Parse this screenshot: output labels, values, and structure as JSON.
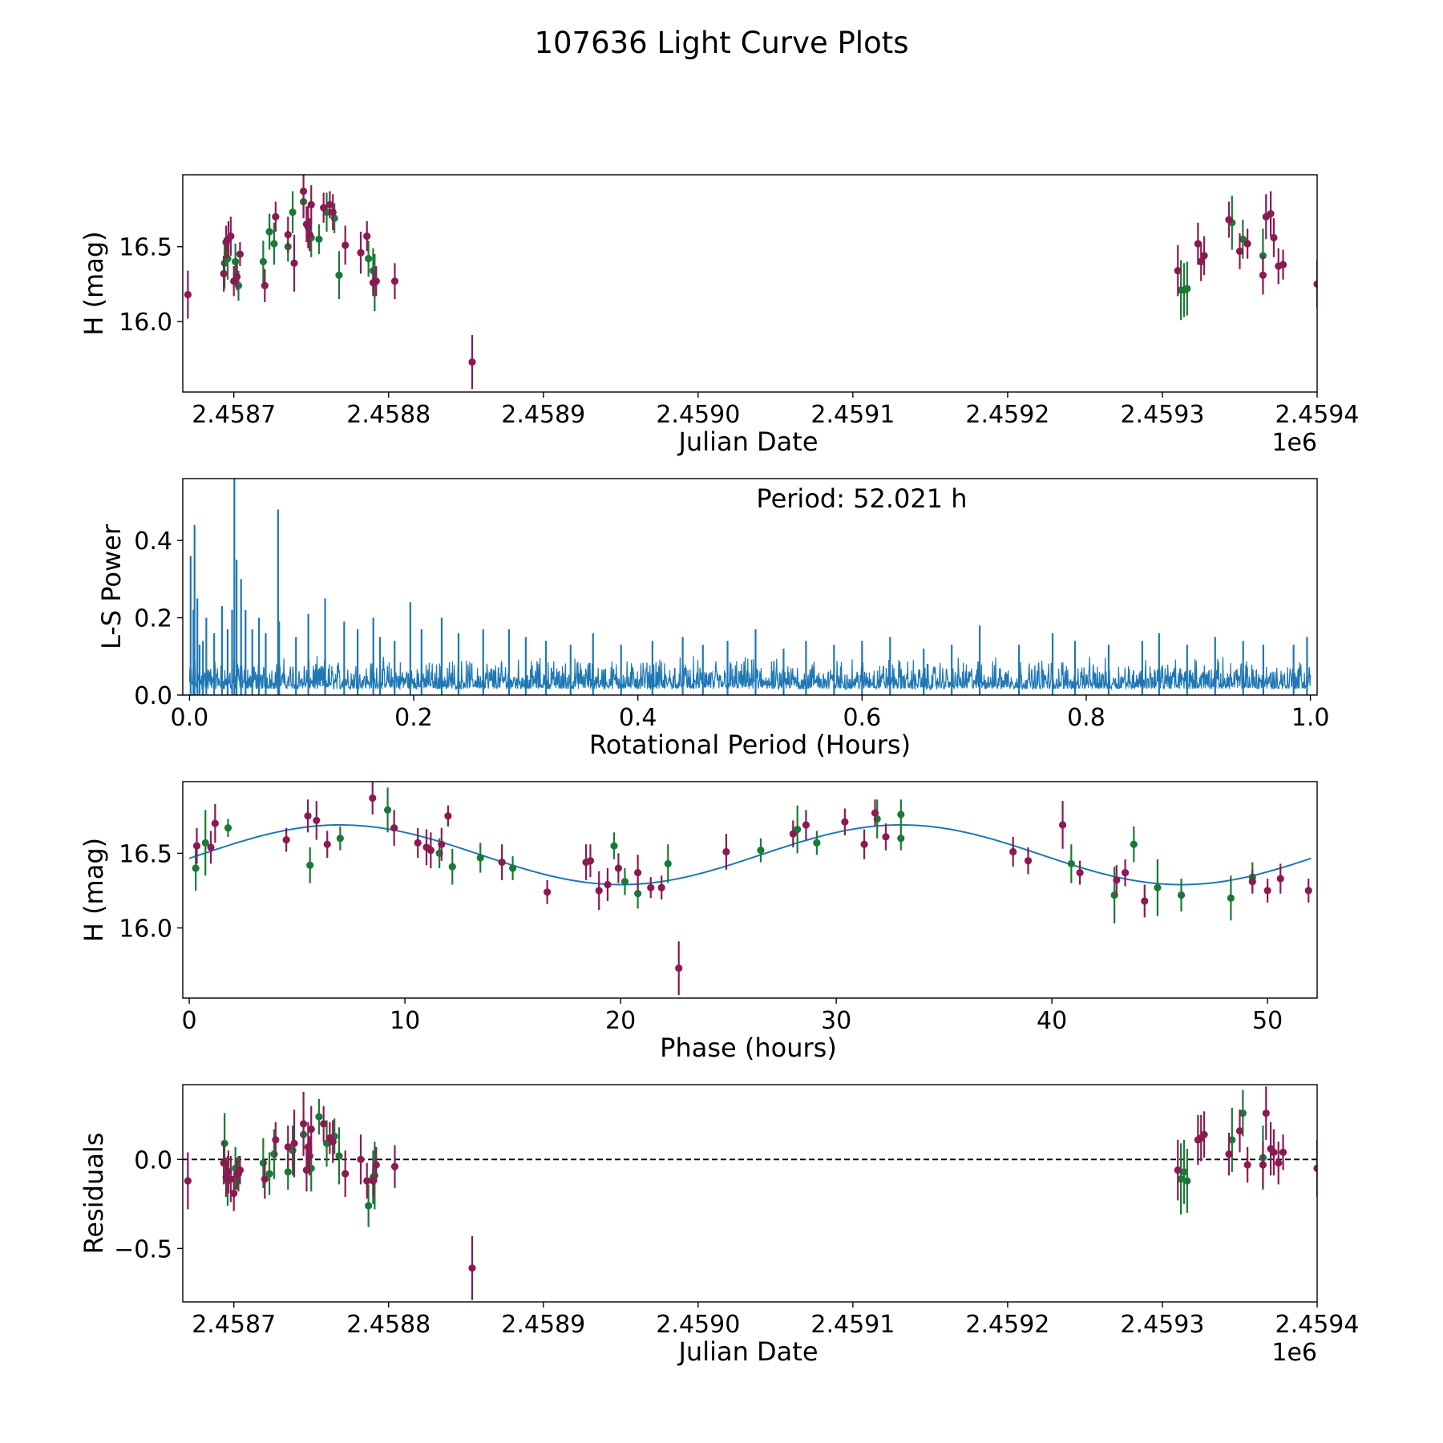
{
  "figure": {
    "title": "107636 Light Curve Plots",
    "colors": {
      "series_a": "#8B1A52",
      "series_b": "#1A7A35",
      "curve": "#1F77B4",
      "axis": "#000000"
    }
  },
  "chart_data": [
    {
      "id": "lightcurve",
      "type": "scatter",
      "xlabel": "Julian Date",
      "ylabel": "H (mag)",
      "offset_label": "1e6",
      "xlim": [
        2.458667,
        2.4594
      ],
      "ylim": [
        15.53,
        16.98
      ],
      "xticks": [
        2.4587,
        2.4588,
        2.4589,
        2.459,
        2.4591,
        2.4592,
        2.4593,
        2.4594
      ],
      "xtick_labels": [
        "2.4587",
        "2.4588",
        "2.4589",
        "2.4590",
        "2.4591",
        "2.4592",
        "2.4593",
        "2.4594"
      ],
      "yticks": [
        16.0,
        16.5
      ],
      "ytick_labels": [
        "16.0",
        "16.5"
      ],
      "series": [
        {
          "name": "series-a",
          "x": [
            2.4586703,
            2.4586935,
            2.458695,
            2.4586965,
            2.458698,
            2.4587,
            2.458702,
            2.458704,
            2.45872,
            2.458727,
            2.458735,
            2.458739,
            2.458745,
            2.458747,
            2.458748,
            2.458749,
            2.45875,
            2.458758,
            2.458762,
            2.458764,
            2.458772,
            2.458782,
            2.458786,
            2.45879,
            2.458792,
            2.458804,
            2.458854,
            2.45931,
            2.459323,
            2.459325,
            2.459327,
            2.459343,
            2.45935,
            2.459355,
            2.459365,
            2.459367,
            2.45937,
            2.459372,
            2.459375,
            2.459378,
            2.4594
          ],
          "y": [
            16.18,
            16.32,
            16.53,
            16.55,
            16.57,
            16.27,
            16.3,
            16.45,
            16.24,
            16.7,
            16.58,
            16.39,
            16.87,
            16.65,
            16.63,
            16.58,
            16.78,
            16.76,
            16.78,
            16.73,
            16.51,
            16.46,
            16.57,
            16.26,
            16.27,
            16.27,
            15.73,
            16.34,
            16.52,
            16.4,
            16.44,
            16.68,
            16.47,
            16.52,
            16.31,
            16.7,
            16.72,
            16.56,
            16.37,
            16.38,
            16.25
          ],
          "err": [
            0.16,
            0.12,
            0.11,
            0.12,
            0.13,
            0.1,
            0.09,
            0.08,
            0.11,
            0.1,
            0.12,
            0.19,
            0.18,
            0.12,
            0.14,
            0.11,
            0.13,
            0.1,
            0.09,
            0.12,
            0.13,
            0.14,
            0.1,
            0.09,
            0.1,
            0.12,
            0.18,
            0.17,
            0.14,
            0.13,
            0.13,
            0.12,
            0.12,
            0.1,
            0.13,
            0.15,
            0.15,
            0.13,
            0.12,
            0.1,
            0.16
          ]
        },
        {
          "name": "series-b",
          "x": [
            2.458694,
            2.458696,
            2.458701,
            2.458703,
            2.458719,
            2.458723,
            2.458726,
            2.458735,
            2.458738,
            2.458745,
            2.45875,
            2.458755,
            2.45876,
            2.458765,
            2.458768,
            2.458787,
            2.45879,
            2.458791,
            2.459312,
            2.459314,
            2.459316,
            2.459345,
            2.459352,
            2.459365
          ],
          "y": [
            16.39,
            16.42,
            16.4,
            16.24,
            16.4,
            16.6,
            16.52,
            16.5,
            16.73,
            16.8,
            16.56,
            16.55,
            16.73,
            16.69,
            16.31,
            16.42,
            16.34,
            16.26,
            16.21,
            16.21,
            16.22,
            16.66,
            16.55,
            16.44
          ],
          "err": [
            0.17,
            0.14,
            0.12,
            0.1,
            0.14,
            0.12,
            0.14,
            0.1,
            0.14,
            0.09,
            0.13,
            0.1,
            0.13,
            0.1,
            0.16,
            0.12,
            0.15,
            0.19,
            0.2,
            0.18,
            0.18,
            0.18,
            0.13,
            0.18
          ]
        }
      ]
    },
    {
      "id": "periodogram",
      "type": "line",
      "xlabel": "Rotational Period (Hours)",
      "ylabel": "L-S Power",
      "annotation": "Period: 52.021 h",
      "xlim": [
        -0.006,
        1.006
      ],
      "ylim": [
        0.0,
        0.56
      ],
      "xticks": [
        0.0,
        0.2,
        0.4,
        0.6,
        0.8,
        1.0
      ],
      "xtick_labels": [
        "0.0",
        "0.2",
        "0.4",
        "0.6",
        "0.8",
        "1.0"
      ],
      "yticks": [
        0.0,
        0.2,
        0.4
      ],
      "ytick_labels": [
        "0.0",
        "0.2",
        "0.4"
      ],
      "peaks": {
        "x": [
          0.001,
          0.0035,
          0.0045,
          0.007,
          0.009,
          0.012,
          0.015,
          0.022,
          0.029,
          0.034,
          0.038,
          0.04,
          0.042,
          0.046,
          0.05,
          0.056,
          0.062,
          0.068,
          0.079,
          0.08,
          0.095,
          0.106,
          0.121,
          0.138,
          0.15,
          0.164,
          0.17,
          0.183,
          0.197,
          0.207,
          0.225,
          0.24,
          0.262,
          0.285,
          0.3,
          0.318,
          0.34,
          0.36,
          0.385,
          0.413,
          0.44,
          0.458,
          0.48,
          0.505,
          0.53,
          0.55,
          0.575,
          0.6,
          0.625,
          0.655,
          0.68,
          0.705,
          0.74,
          0.77,
          0.79,
          0.82,
          0.85,
          0.865,
          0.89,
          0.915,
          0.94,
          0.958,
          0.985,
          0.997
        ],
        "y": [
          0.36,
          0.22,
          0.44,
          0.25,
          0.13,
          0.14,
          0.2,
          0.16,
          0.23,
          0.17,
          0.22,
          0.56,
          0.35,
          0.3,
          0.22,
          0.17,
          0.2,
          0.16,
          0.48,
          0.19,
          0.15,
          0.21,
          0.25,
          0.19,
          0.17,
          0.2,
          0.15,
          0.14,
          0.24,
          0.17,
          0.2,
          0.16,
          0.17,
          0.17,
          0.15,
          0.14,
          0.13,
          0.16,
          0.13,
          0.14,
          0.15,
          0.13,
          0.14,
          0.17,
          0.12,
          0.14,
          0.13,
          0.14,
          0.15,
          0.12,
          0.13,
          0.18,
          0.13,
          0.16,
          0.14,
          0.13,
          0.14,
          0.16,
          0.13,
          0.15,
          0.14,
          0.13,
          0.13,
          0.15
        ]
      }
    },
    {
      "id": "phased",
      "type": "scatter",
      "xlabel": "Phase (hours)",
      "ylabel": "H (mag)",
      "xlim": [
        -0.3,
        52.3
      ],
      "ylim": [
        15.53,
        16.98
      ],
      "xticks": [
        0,
        10,
        20,
        30,
        40,
        50
      ],
      "xtick_labels": [
        "0",
        "10",
        "20",
        "30",
        "40",
        "50"
      ],
      "yticks": [
        16.0,
        16.5
      ],
      "ytick_labels": [
        "16.0",
        "16.5"
      ],
      "fit": {
        "mean": 16.49,
        "amplitude": 0.2,
        "period": 26.0105,
        "peak_phase": 7.0
      },
      "series": [
        {
          "name": "series-a",
          "x": [
            0.35,
            1.0,
            1.2,
            4.5,
            5.5,
            5.9,
            6.4,
            8.5,
            9.5,
            10.6,
            11.0,
            11.2,
            11.7,
            12.0,
            14.5,
            16.6,
            18.4,
            18.6,
            19.0,
            19.4,
            19.9,
            20.8,
            21.4,
            21.9,
            22.7,
            24.9,
            28.0,
            28.6,
            30.4,
            31.3,
            31.8,
            32.3,
            38.2,
            38.9,
            40.5,
            41.3,
            43.0,
            43.4,
            44.3,
            49.3,
            50.0,
            50.6,
            51.9
          ],
          "y": [
            16.55,
            16.54,
            16.7,
            16.59,
            16.75,
            16.72,
            16.56,
            16.87,
            16.67,
            16.57,
            16.54,
            16.52,
            16.56,
            16.75,
            16.44,
            16.24,
            16.44,
            16.45,
            16.25,
            16.29,
            16.4,
            16.37,
            16.27,
            16.27,
            15.73,
            16.51,
            16.63,
            16.69,
            16.71,
            16.56,
            16.77,
            16.61,
            16.51,
            16.45,
            16.69,
            16.37,
            16.32,
            16.37,
            16.18,
            16.31,
            16.25,
            16.33,
            16.25
          ],
          "err": [
            0.12,
            0.11,
            0.13,
            0.08,
            0.11,
            0.13,
            0.09,
            0.11,
            0.12,
            0.1,
            0.12,
            0.12,
            0.11,
            0.07,
            0.12,
            0.08,
            0.12,
            0.11,
            0.13,
            0.11,
            0.1,
            0.12,
            0.07,
            0.08,
            0.18,
            0.12,
            0.09,
            0.1,
            0.09,
            0.1,
            0.09,
            0.09,
            0.1,
            0.09,
            0.16,
            0.08,
            0.1,
            0.09,
            0.11,
            0.08,
            0.08,
            0.1,
            0.08
          ]
        },
        {
          "name": "series-b",
          "x": [
            0.3,
            0.75,
            1.8,
            5.6,
            7.0,
            9.2,
            11.6,
            12.2,
            13.5,
            15.0,
            19.7,
            20.2,
            20.8,
            22.2,
            26.5,
            28.2,
            29.1,
            31.9,
            33.0,
            33.0,
            40.9,
            42.9,
            43.8,
            44.9,
            46.0,
            48.3,
            49.3
          ],
          "y": [
            16.4,
            16.57,
            16.67,
            16.42,
            16.6,
            16.79,
            16.5,
            16.41,
            16.47,
            16.4,
            16.55,
            16.31,
            16.23,
            16.43,
            16.52,
            16.66,
            16.57,
            16.73,
            16.76,
            16.6,
            16.43,
            16.22,
            16.56,
            16.27,
            16.22,
            16.2,
            16.34
          ],
          "err": [
            0.15,
            0.22,
            0.06,
            0.12,
            0.08,
            0.15,
            0.1,
            0.12,
            0.1,
            0.08,
            0.09,
            0.09,
            0.1,
            0.13,
            0.08,
            0.16,
            0.08,
            0.13,
            0.1,
            0.08,
            0.13,
            0.19,
            0.12,
            0.19,
            0.11,
            0.15,
            0.1
          ]
        }
      ]
    },
    {
      "id": "residuals",
      "type": "scatter",
      "xlabel": "Julian Date",
      "ylabel": "Residuals",
      "offset_label": "1e6",
      "xlim": [
        2.458667,
        2.4594
      ],
      "ylim": [
        -0.8,
        0.42
      ],
      "xticks": [
        2.4587,
        2.4588,
        2.4589,
        2.459,
        2.4591,
        2.4592,
        2.4593,
        2.4594
      ],
      "xtick_labels": [
        "2.4587",
        "2.4588",
        "2.4589",
        "2.4590",
        "2.4591",
        "2.4592",
        "2.4593",
        "2.4594"
      ],
      "yticks": [
        0.0,
        -0.5
      ],
      "ytick_labels": [
        "0.0",
        "−0.5"
      ],
      "reference_line": 0.0,
      "series": [
        {
          "name": "series-a",
          "x": [
            2.4586703,
            2.4586935,
            2.458695,
            2.4586965,
            2.458698,
            2.4587,
            2.458702,
            2.458704,
            2.45872,
            2.458727,
            2.458735,
            2.458739,
            2.458745,
            2.458747,
            2.458748,
            2.458749,
            2.45875,
            2.458758,
            2.458762,
            2.458764,
            2.458772,
            2.458782,
            2.458786,
            2.45879,
            2.458792,
            2.458804,
            2.458854,
            2.45931,
            2.459323,
            2.459325,
            2.459327,
            2.459343,
            2.45935,
            2.459355,
            2.459365,
            2.459367,
            2.45937,
            2.459372,
            2.459375,
            2.459378,
            2.4594
          ],
          "y": [
            -0.12,
            -0.02,
            -0.1,
            -0.07,
            -0.11,
            -0.19,
            -0.08,
            -0.06,
            -0.11,
            0.11,
            0.07,
            0.09,
            0.2,
            -0.06,
            0.07,
            0.02,
            0.17,
            0.2,
            0.12,
            0.1,
            -0.08,
            0.0,
            -0.12,
            -0.12,
            -0.03,
            -0.04,
            -0.61,
            -0.06,
            0.11,
            0.12,
            0.14,
            0.03,
            0.16,
            -0.03,
            -0.03,
            0.26,
            0.06,
            0.04,
            -0.02,
            0.04,
            -0.05
          ],
          "err": [
            0.16,
            0.12,
            0.11,
            0.12,
            0.13,
            0.1,
            0.09,
            0.08,
            0.11,
            0.1,
            0.12,
            0.19,
            0.18,
            0.12,
            0.14,
            0.11,
            0.13,
            0.1,
            0.09,
            0.12,
            0.13,
            0.14,
            0.1,
            0.09,
            0.1,
            0.12,
            0.18,
            0.17,
            0.14,
            0.13,
            0.13,
            0.12,
            0.12,
            0.1,
            0.13,
            0.15,
            0.15,
            0.13,
            0.12,
            0.1,
            0.16
          ]
        },
        {
          "name": "series-b",
          "x": [
            2.458694,
            2.458696,
            2.458701,
            2.458703,
            2.458719,
            2.458723,
            2.458726,
            2.458735,
            2.458738,
            2.458745,
            2.45875,
            2.458755,
            2.45876,
            2.458765,
            2.458768,
            2.458787,
            2.45879,
            2.458791,
            2.459312,
            2.459314,
            2.459316,
            2.459345,
            2.459352,
            2.459365
          ],
          "y": [
            0.09,
            -0.12,
            -0.05,
            -0.08,
            -0.02,
            -0.08,
            0.03,
            -0.07,
            0.05,
            0.14,
            -0.05,
            0.24,
            0.09,
            0.13,
            0.02,
            -0.26,
            -0.1,
            -0.09,
            -0.11,
            -0.07,
            -0.12,
            0.11,
            0.26,
            0.01
          ],
          "err": [
            0.17,
            0.14,
            0.12,
            0.1,
            0.14,
            0.12,
            0.14,
            0.1,
            0.14,
            0.09,
            0.13,
            0.1,
            0.13,
            0.1,
            0.16,
            0.12,
            0.15,
            0.19,
            0.2,
            0.18,
            0.18,
            0.18,
            0.13,
            0.18
          ]
        }
      ]
    }
  ]
}
